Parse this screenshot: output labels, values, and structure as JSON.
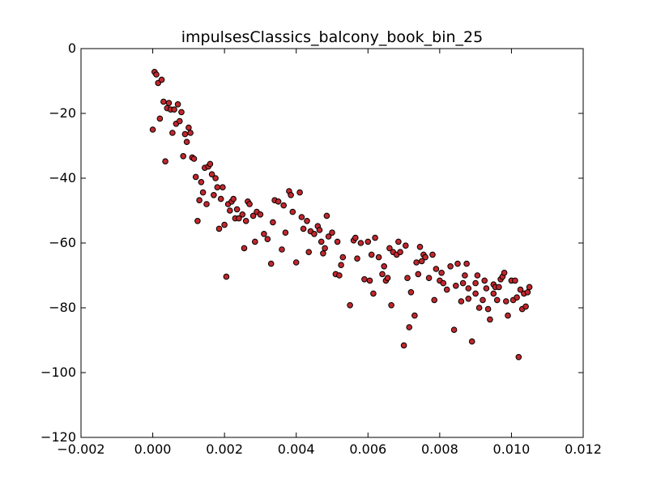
{
  "chart_data": {
    "type": "scatter",
    "title": "impulsesClassics_balcony_book_bin_25",
    "xlabel": "",
    "ylabel": "",
    "xlim": [
      -0.002,
      0.012
    ],
    "ylim": [
      -120,
      0
    ],
    "xticks": [
      -0.002,
      0.0,
      0.002,
      0.004,
      0.006,
      0.008,
      0.01,
      0.012
    ],
    "xtick_labels": [
      "−0.002",
      "0.000",
      "0.002",
      "0.004",
      "0.006",
      "0.008",
      "0.010",
      "0.012"
    ],
    "yticks": [
      0,
      -20,
      -40,
      -60,
      -80,
      -100,
      -120
    ],
    "ytick_labels": [
      "0",
      "−20",
      "−40",
      "−60",
      "−80",
      "−100",
      "−120"
    ],
    "grid": false,
    "marker_color": "#c1272d",
    "points": [
      [
        0.0,
        -25.0
      ],
      [
        5e-05,
        -7.2
      ],
      [
        0.0001,
        -8.0
      ],
      [
        0.00015,
        -10.6
      ],
      [
        0.0002,
        -21.6
      ],
      [
        0.00025,
        -9.6
      ],
      [
        0.0003,
        -16.4
      ],
      [
        0.00035,
        -34.8
      ],
      [
        0.0004,
        -18.4
      ],
      [
        0.00045,
        -16.8
      ],
      [
        0.0005,
        -18.8
      ],
      [
        0.00055,
        -26.0
      ],
      [
        0.0006,
        -18.8
      ],
      [
        0.00065,
        -23.2
      ],
      [
        0.0007,
        -17.2
      ],
      [
        0.00075,
        -22.4
      ],
      [
        0.0008,
        -19.6
      ],
      [
        0.00085,
        -33.2
      ],
      [
        0.0009,
        -26.4
      ],
      [
        0.00095,
        -28.8
      ],
      [
        0.001,
        -24.4
      ],
      [
        0.00105,
        -26.0
      ],
      [
        0.0011,
        -33.6
      ],
      [
        0.00115,
        -34.0
      ],
      [
        0.0012,
        -39.6
      ],
      [
        0.00125,
        -53.2
      ],
      [
        0.0013,
        -46.8
      ],
      [
        0.00135,
        -41.2
      ],
      [
        0.0014,
        -44.4
      ],
      [
        0.00145,
        -36.8
      ],
      [
        0.0015,
        -48.0
      ],
      [
        0.00155,
        -36.4
      ],
      [
        0.0016,
        -35.6
      ],
      [
        0.00165,
        -38.8
      ],
      [
        0.0017,
        -45.2
      ],
      [
        0.00175,
        -40.0
      ],
      [
        0.0018,
        -42.8
      ],
      [
        0.00185,
        -55.6
      ],
      [
        0.0019,
        -46.4
      ],
      [
        0.00195,
        -42.8
      ],
      [
        0.002,
        -54.4
      ],
      [
        0.00205,
        -70.4
      ],
      [
        0.0021,
        -48.0
      ],
      [
        0.00215,
        -50.0
      ],
      [
        0.0022,
        -47.2
      ],
      [
        0.00225,
        -46.4
      ],
      [
        0.0023,
        -52.4
      ],
      [
        0.00235,
        -49.6
      ],
      [
        0.0024,
        -52.4
      ],
      [
        0.0025,
        -51.2
      ],
      [
        0.00255,
        -61.6
      ],
      [
        0.0026,
        -53.2
      ],
      [
        0.00265,
        -47.2
      ],
      [
        0.0027,
        -48.0
      ],
      [
        0.0028,
        -51.6
      ],
      [
        0.00285,
        -59.6
      ],
      [
        0.0029,
        -50.4
      ],
      [
        0.003,
        -51.2
      ],
      [
        0.0031,
        -57.2
      ],
      [
        0.0032,
        -58.8
      ],
      [
        0.0033,
        -66.4
      ],
      [
        0.00335,
        -53.6
      ],
      [
        0.0034,
        -46.8
      ],
      [
        0.0035,
        -47.2
      ],
      [
        0.0036,
        -62.0
      ],
      [
        0.00365,
        -48.4
      ],
      [
        0.0037,
        -56.8
      ],
      [
        0.0038,
        -44.0
      ],
      [
        0.00385,
        -45.2
      ],
      [
        0.0039,
        -50.4
      ],
      [
        0.004,
        -66.0
      ],
      [
        0.0041,
        -44.4
      ],
      [
        0.00415,
        -52.0
      ],
      [
        0.0042,
        -55.6
      ],
      [
        0.0043,
        -53.2
      ],
      [
        0.00435,
        -62.8
      ],
      [
        0.0044,
        -56.4
      ],
      [
        0.0045,
        -57.2
      ],
      [
        0.0046,
        -54.8
      ],
      [
        0.00465,
        -56.0
      ],
      [
        0.0047,
        -59.6
      ],
      [
        0.00475,
        -63.2
      ],
      [
        0.0048,
        -61.6
      ],
      [
        0.00485,
        -51.6
      ],
      [
        0.0049,
        -58.0
      ],
      [
        0.005,
        -56.8
      ],
      [
        0.0051,
        -69.6
      ],
      [
        0.00515,
        -59.6
      ],
      [
        0.0052,
        -70.0
      ],
      [
        0.00525,
        -66.8
      ],
      [
        0.0053,
        -64.4
      ],
      [
        0.0055,
        -79.2
      ],
      [
        0.0056,
        -59.2
      ],
      [
        0.00565,
        -58.4
      ],
      [
        0.0057,
        -64.8
      ],
      [
        0.0058,
        -60.0
      ],
      [
        0.0059,
        -71.2
      ],
      [
        0.006,
        -59.6
      ],
      [
        0.00605,
        -71.6
      ],
      [
        0.0061,
        -63.6
      ],
      [
        0.00615,
        -75.6
      ],
      [
        0.0062,
        -58.4
      ],
      [
        0.0063,
        -64.4
      ],
      [
        0.0064,
        -69.6
      ],
      [
        0.00645,
        -67.2
      ],
      [
        0.0065,
        -71.6
      ],
      [
        0.00655,
        -70.8
      ],
      [
        0.0066,
        -61.6
      ],
      [
        0.00665,
        -79.2
      ],
      [
        0.0067,
        -62.8
      ],
      [
        0.0068,
        -63.6
      ],
      [
        0.00685,
        -59.6
      ],
      [
        0.0069,
        -62.8
      ],
      [
        0.007,
        -91.6
      ],
      [
        0.00705,
        -60.8
      ],
      [
        0.0071,
        -70.8
      ],
      [
        0.00715,
        -86.0
      ],
      [
        0.0072,
        -75.2
      ],
      [
        0.0073,
        -82.4
      ],
      [
        0.00735,
        -66.0
      ],
      [
        0.0074,
        -69.6
      ],
      [
        0.00745,
        -61.2
      ],
      [
        0.0075,
        -65.6
      ],
      [
        0.00755,
        -63.6
      ],
      [
        0.0076,
        -64.4
      ],
      [
        0.0077,
        -70.8
      ],
      [
        0.0078,
        -63.6
      ],
      [
        0.00785,
        -77.6
      ],
      [
        0.0079,
        -68.0
      ],
      [
        0.008,
        -71.6
      ],
      [
        0.00805,
        -69.2
      ],
      [
        0.0081,
        -72.4
      ],
      [
        0.0082,
        -74.4
      ],
      [
        0.0083,
        -67.2
      ],
      [
        0.0084,
        -86.8
      ],
      [
        0.00845,
        -73.2
      ],
      [
        0.0085,
        -66.4
      ],
      [
        0.0086,
        -78.0
      ],
      [
        0.00865,
        -72.4
      ],
      [
        0.0087,
        -70.0
      ],
      [
        0.00875,
        -66.4
      ],
      [
        0.0088,
        -77.2
      ],
      [
        0.0089,
        -90.4
      ],
      [
        0.009,
        -72.4
      ],
      [
        0.00905,
        -70.0
      ],
      [
        0.0091,
        -80.0
      ],
      [
        0.0092,
        -77.6
      ],
      [
        0.00925,
        -71.6
      ],
      [
        0.0093,
        -74.0
      ],
      [
        0.00935,
        -80.4
      ],
      [
        0.0094,
        -83.6
      ],
      [
        0.0095,
        -72.8
      ],
      [
        0.00955,
        -73.6
      ],
      [
        0.0096,
        -77.6
      ],
      [
        0.00965,
        -73.6
      ],
      [
        0.0097,
        -71.2
      ],
      [
        0.00975,
        -70.4
      ],
      [
        0.0098,
        -69.2
      ],
      [
        0.00985,
        -78.0
      ],
      [
        0.0099,
        -82.4
      ],
      [
        0.01,
        -71.6
      ],
      [
        0.01005,
        -77.6
      ],
      [
        0.0101,
        -71.6
      ],
      [
        0.01015,
        -76.8
      ],
      [
        0.0102,
        -95.2
      ],
      [
        0.01025,
        -74.4
      ],
      [
        0.0103,
        -80.4
      ],
      [
        0.01035,
        -75.6
      ],
      [
        0.0104,
        -79.6
      ],
      [
        0.01045,
        -75.2
      ],
      [
        0.0105,
        -73.6
      ],
      [
        0.0088,
        -74.0
      ],
      [
        0.009,
        -75.6
      ],
      [
        0.0095,
        -75.6
      ]
    ]
  }
}
